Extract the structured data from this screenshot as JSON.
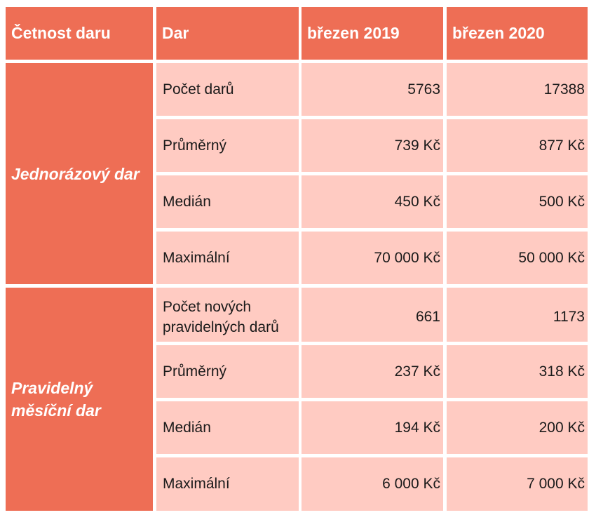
{
  "header": {
    "col1": "Četnost daru",
    "col2": "Dar",
    "col3": "březen 2019",
    "col4": "březen 2020"
  },
  "groups": [
    {
      "name": "Jednorázový dar",
      "rows": [
        {
          "label": "Počet darů",
          "v2019": "5763",
          "v2020": "17388"
        },
        {
          "label": "Průměrný",
          "v2019": "739 Kč",
          "v2020": "877 Kč"
        },
        {
          "label": "Medián",
          "v2019": "450 Kč",
          "v2020": "500 Kč"
        },
        {
          "label": "Maximální",
          "v2019": "70 000 Kč",
          "v2020": "50 000 Kč"
        }
      ]
    },
    {
      "name": "Pravidelný měsíční dar",
      "rows": [
        {
          "label": "Počet nových pravidelných darů",
          "v2019": "661",
          "v2020": "1173"
        },
        {
          "label": "Průměrný",
          "v2019": "237 Kč",
          "v2020": "318 Kč"
        },
        {
          "label": "Medián",
          "v2019": "194 Kč",
          "v2020": "200 Kč"
        },
        {
          "label": "Maximální",
          "v2019": "6 000 Kč",
          "v2020": "7 000 Kč"
        }
      ]
    }
  ],
  "colors": {
    "header_bg": "#ee6e55",
    "cell_bg": "#ffcbc2",
    "header_text": "#ffffff"
  }
}
